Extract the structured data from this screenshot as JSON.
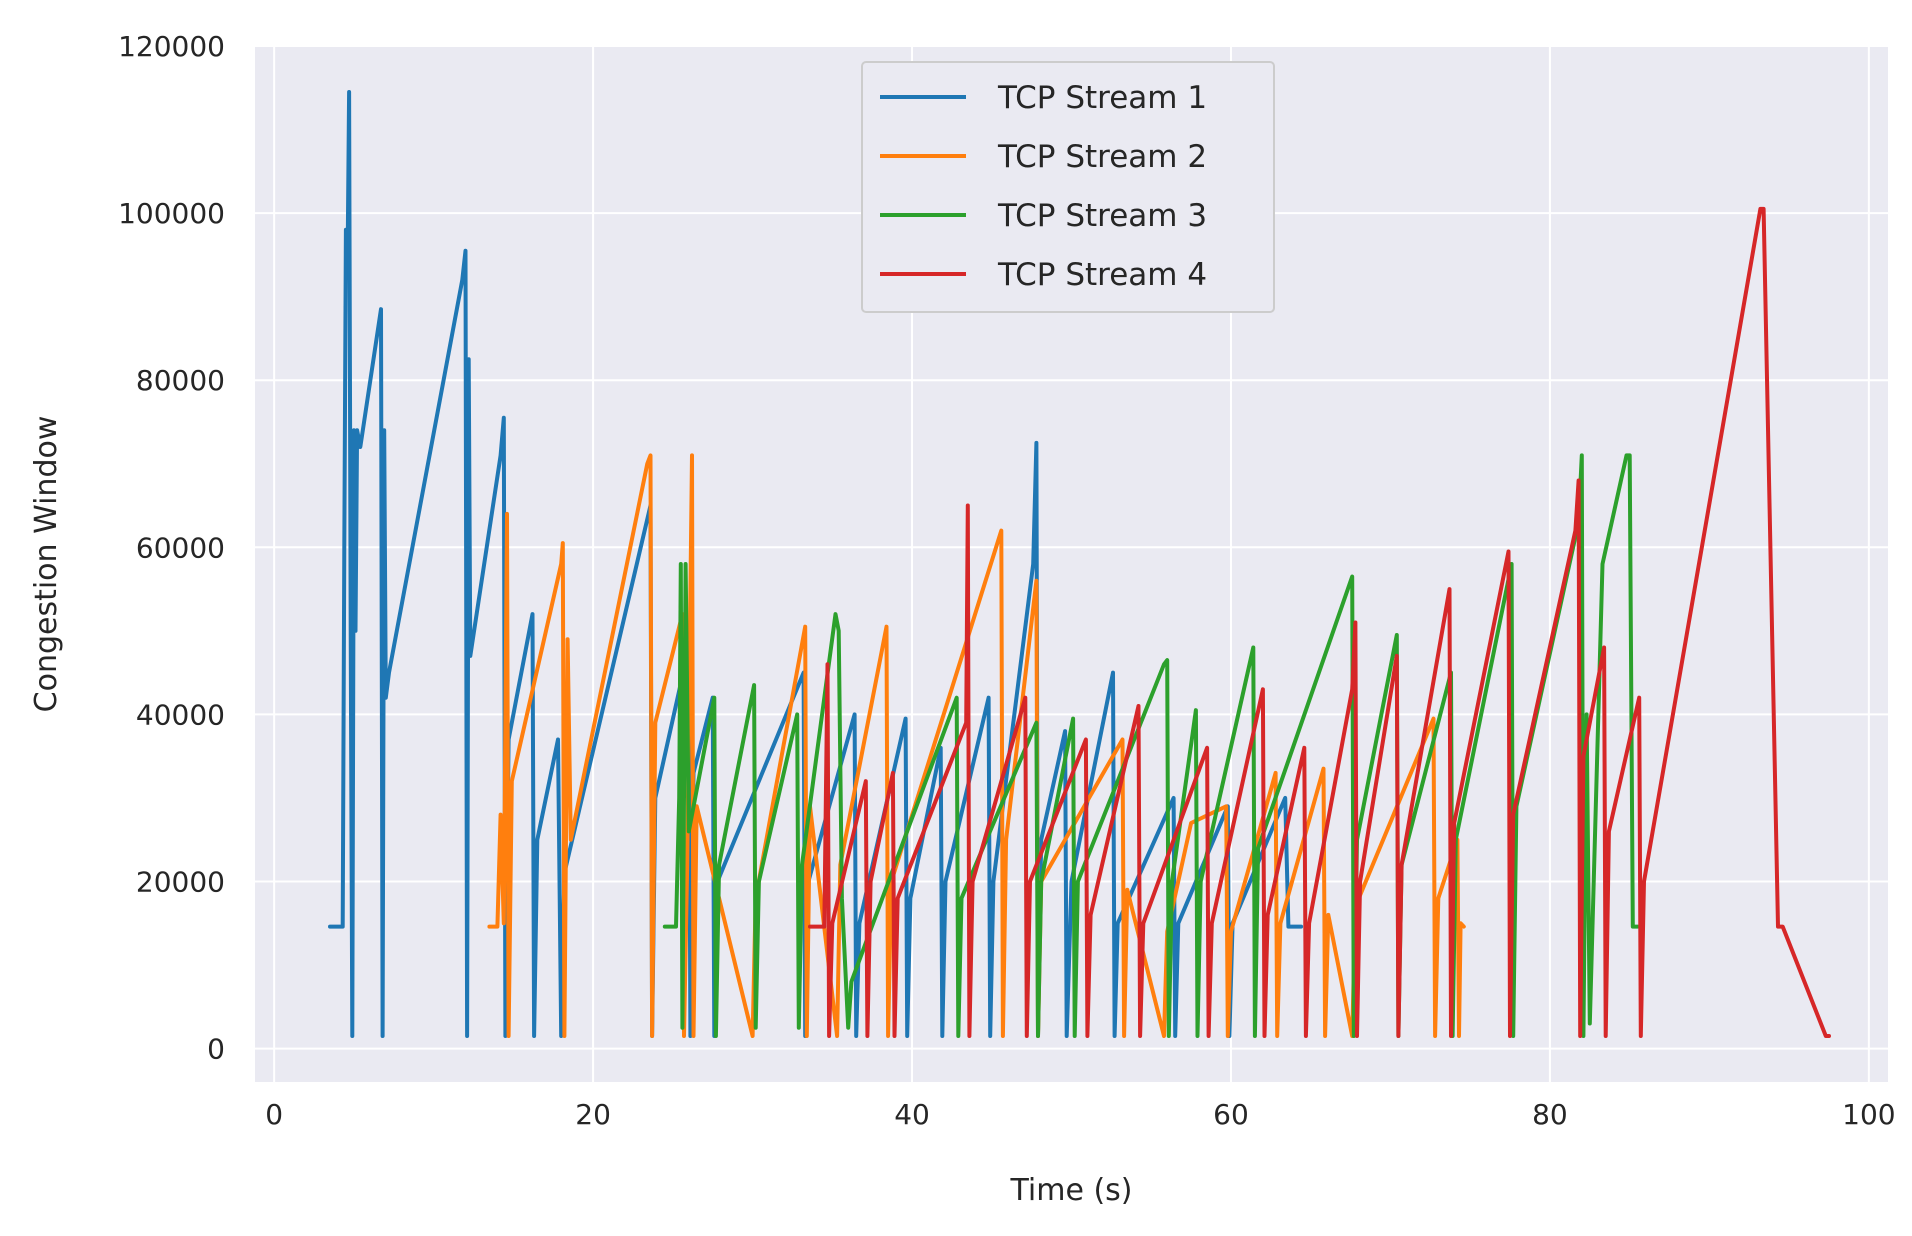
{
  "chart_data": {
    "type": "line",
    "title": "",
    "xlabel": "Time (s)",
    "ylabel": "Congestion Window",
    "xlim": [
      -1.2,
      101.2
    ],
    "ylim": [
      -4000,
      120000
    ],
    "xticks": [
      0,
      20,
      40,
      60,
      80,
      100
    ],
    "yticks": [
      0,
      20000,
      40000,
      60000,
      80000,
      100000,
      120000
    ],
    "grid": true,
    "legend_position": "top-center",
    "background": "#eaeaf2",
    "series": [
      {
        "name": "TCP Stream 1",
        "color": "#1f77b4",
        "points": [
          [
            3.5,
            14600
          ],
          [
            4.0,
            14600
          ],
          [
            4.3,
            14600
          ],
          [
            4.4,
            60000
          ],
          [
            4.5,
            98000
          ],
          [
            4.6,
            93000
          ],
          [
            4.7,
            114500
          ],
          [
            4.8,
            50000
          ],
          [
            4.9,
            1500
          ],
          [
            5.0,
            74000
          ],
          [
            5.1,
            50000
          ],
          [
            5.2,
            74000
          ],
          [
            5.4,
            72000
          ],
          [
            6.7,
            88500
          ],
          [
            6.8,
            1500
          ],
          [
            6.9,
            74000
          ],
          [
            7.0,
            42000
          ],
          [
            7.2,
            45000
          ],
          [
            11.8,
            92000
          ],
          [
            12.0,
            95500
          ],
          [
            12.1,
            1500
          ],
          [
            12.2,
            82500
          ],
          [
            12.3,
            47000
          ],
          [
            14.2,
            71000
          ],
          [
            14.4,
            75500
          ],
          [
            14.5,
            1500
          ],
          [
            14.7,
            37000
          ],
          [
            16.2,
            52000
          ],
          [
            16.3,
            1500
          ],
          [
            16.5,
            25000
          ],
          [
            17.8,
            37000
          ],
          [
            18.0,
            1500
          ],
          [
            18.2,
            21000
          ],
          [
            23.6,
            65000
          ],
          [
            23.7,
            1500
          ],
          [
            23.9,
            30000
          ],
          [
            26.0,
            48000
          ],
          [
            26.1,
            1500
          ],
          [
            26.3,
            33000
          ],
          [
            27.5,
            42000
          ],
          [
            27.6,
            1500
          ],
          [
            27.8,
            20000
          ],
          [
            33.2,
            45000
          ],
          [
            33.3,
            1500
          ],
          [
            33.5,
            20000
          ],
          [
            36.4,
            40000
          ],
          [
            36.5,
            1500
          ],
          [
            36.7,
            15000
          ],
          [
            39.6,
            39500
          ],
          [
            39.7,
            1500
          ],
          [
            39.9,
            18000
          ],
          [
            41.8,
            36000
          ],
          [
            41.9,
            1500
          ],
          [
            42.1,
            20000
          ],
          [
            44.8,
            42000
          ],
          [
            44.9,
            1500
          ],
          [
            45.1,
            20000
          ],
          [
            47.6,
            58000
          ],
          [
            47.8,
            72500
          ],
          [
            47.9,
            1500
          ],
          [
            48.1,
            25000
          ],
          [
            49.6,
            38000
          ],
          [
            49.7,
            1500
          ],
          [
            50.0,
            20000
          ],
          [
            52.6,
            45000
          ],
          [
            52.7,
            1500
          ],
          [
            52.9,
            15000
          ],
          [
            56.4,
            30000
          ],
          [
            56.5,
            1500
          ],
          [
            56.7,
            15000
          ],
          [
            59.8,
            29000
          ],
          [
            59.9,
            1500
          ],
          [
            60.1,
            15000
          ],
          [
            63.4,
            30000
          ],
          [
            63.6,
            14600
          ],
          [
            64.2,
            14600
          ],
          [
            64.4,
            14600
          ]
        ]
      },
      {
        "name": "TCP Stream 2",
        "color": "#ff7f0e",
        "points": [
          [
            13.5,
            14600
          ],
          [
            14.0,
            14600
          ],
          [
            14.2,
            28000
          ],
          [
            14.4,
            15000
          ],
          [
            14.6,
            64000
          ],
          [
            14.7,
            1500
          ],
          [
            14.9,
            32000
          ],
          [
            18.0,
            58000
          ],
          [
            18.1,
            60500
          ],
          [
            18.2,
            1500
          ],
          [
            18.4,
            49000
          ],
          [
            18.6,
            25000
          ],
          [
            23.4,
            70000
          ],
          [
            23.6,
            71000
          ],
          [
            23.7,
            1500
          ],
          [
            23.9,
            39000
          ],
          [
            25.6,
            52000
          ],
          [
            25.7,
            1500
          ],
          [
            25.9,
            22000
          ],
          [
            26.2,
            71000
          ],
          [
            26.3,
            1500
          ],
          [
            26.5,
            29000
          ],
          [
            30.0,
            1500
          ],
          [
            30.2,
            18000
          ],
          [
            33.3,
            50500
          ],
          [
            33.4,
            1500
          ],
          [
            33.6,
            29000
          ],
          [
            35.3,
            1500
          ],
          [
            35.5,
            22000
          ],
          [
            38.4,
            50500
          ],
          [
            38.5,
            1500
          ],
          [
            38.7,
            20000
          ],
          [
            45.6,
            62000
          ],
          [
            45.7,
            1500
          ],
          [
            45.9,
            25000
          ],
          [
            47.8,
            56000
          ],
          [
            47.9,
            1500
          ],
          [
            48.1,
            20000
          ],
          [
            53.2,
            37000
          ],
          [
            53.3,
            1500
          ],
          [
            53.5,
            19000
          ],
          [
            55.8,
            1500
          ],
          [
            56.0,
            14000
          ],
          [
            57.5,
            27000
          ],
          [
            59.7,
            29000
          ],
          [
            59.8,
            1500
          ],
          [
            60.0,
            14000
          ],
          [
            62.8,
            33000
          ],
          [
            62.9,
            1500
          ],
          [
            63.1,
            15000
          ],
          [
            65.8,
            33500
          ],
          [
            65.9,
            1500
          ],
          [
            66.1,
            16000
          ],
          [
            67.6,
            1500
          ],
          [
            67.8,
            17000
          ],
          [
            72.7,
            39500
          ],
          [
            72.8,
            1500
          ],
          [
            73.0,
            18000
          ],
          [
            74.2,
            25000
          ],
          [
            74.3,
            1500
          ],
          [
            74.4,
            15000
          ],
          [
            74.6,
            14600
          ]
        ]
      },
      {
        "name": "TCP Stream 3",
        "color": "#2ca02c",
        "points": [
          [
            24.5,
            14600
          ],
          [
            25.0,
            14600
          ],
          [
            25.2,
            14600
          ],
          [
            25.4,
            30000
          ],
          [
            25.5,
            58000
          ],
          [
            25.6,
            2500
          ],
          [
            25.8,
            58000
          ],
          [
            26.0,
            26000
          ],
          [
            27.2,
            38000
          ],
          [
            27.6,
            42000
          ],
          [
            27.7,
            1500
          ],
          [
            27.9,
            22000
          ],
          [
            30.1,
            43500
          ],
          [
            30.2,
            2500
          ],
          [
            30.4,
            20000
          ],
          [
            32.8,
            40000
          ],
          [
            32.9,
            2500
          ],
          [
            33.1,
            22000
          ],
          [
            35.2,
            52000
          ],
          [
            35.4,
            50000
          ],
          [
            35.6,
            18000
          ],
          [
            36.0,
            2500
          ],
          [
            36.2,
            8000
          ],
          [
            42.8,
            42000
          ],
          [
            42.9,
            1500
          ],
          [
            43.1,
            18000
          ],
          [
            47.8,
            39000
          ],
          [
            47.9,
            1500
          ],
          [
            48.1,
            20000
          ],
          [
            50.1,
            39500
          ],
          [
            50.2,
            1500
          ],
          [
            50.4,
            20000
          ],
          [
            55.8,
            46000
          ],
          [
            56.0,
            46500
          ],
          [
            56.1,
            1500
          ],
          [
            56.3,
            20000
          ],
          [
            57.8,
            40500
          ],
          [
            57.9,
            1500
          ],
          [
            58.1,
            20000
          ],
          [
            61.4,
            48000
          ],
          [
            61.5,
            1500
          ],
          [
            61.7,
            24000
          ],
          [
            67.6,
            56500
          ],
          [
            67.7,
            1500
          ],
          [
            67.9,
            25000
          ],
          [
            70.4,
            49500
          ],
          [
            70.5,
            1500
          ],
          [
            70.7,
            22000
          ],
          [
            73.8,
            45000
          ],
          [
            73.9,
            1500
          ],
          [
            74.1,
            25000
          ],
          [
            77.6,
            58000
          ],
          [
            77.7,
            1500
          ],
          [
            77.9,
            29000
          ],
          [
            81.8,
            63000
          ],
          [
            82.0,
            71000
          ],
          [
            82.1,
            1500
          ],
          [
            82.3,
            40000
          ],
          [
            82.5,
            3000
          ],
          [
            83.3,
            58000
          ],
          [
            84.8,
            71000
          ],
          [
            85.0,
            71000
          ],
          [
            85.2,
            14600
          ],
          [
            85.5,
            14600
          ]
        ]
      },
      {
        "name": "TCP Stream 4",
        "color": "#d62728",
        "points": [
          [
            33.6,
            14600
          ],
          [
            34.5,
            14600
          ],
          [
            34.7,
            46000
          ],
          [
            34.8,
            1500
          ],
          [
            35.0,
            15000
          ],
          [
            37.1,
            32000
          ],
          [
            37.2,
            1500
          ],
          [
            37.4,
            20000
          ],
          [
            38.8,
            33000
          ],
          [
            38.9,
            1500
          ],
          [
            39.1,
            18000
          ],
          [
            43.4,
            39000
          ],
          [
            43.5,
            65000
          ],
          [
            43.6,
            1500
          ],
          [
            43.8,
            20000
          ],
          [
            47.1,
            42000
          ],
          [
            47.2,
            1500
          ],
          [
            47.4,
            20000
          ],
          [
            50.9,
            37000
          ],
          [
            51.0,
            1500
          ],
          [
            51.2,
            16000
          ],
          [
            54.2,
            41000
          ],
          [
            54.3,
            1500
          ],
          [
            54.5,
            15000
          ],
          [
            58.5,
            36000
          ],
          [
            58.6,
            1500
          ],
          [
            58.8,
            15000
          ],
          [
            62.0,
            43000
          ],
          [
            62.1,
            1500
          ],
          [
            62.3,
            16000
          ],
          [
            64.6,
            36000
          ],
          [
            64.7,
            1500
          ],
          [
            64.9,
            15000
          ],
          [
            67.6,
            43000
          ],
          [
            67.8,
            51000
          ],
          [
            67.9,
            1500
          ],
          [
            68.1,
            20000
          ],
          [
            70.4,
            47000
          ],
          [
            70.5,
            1500
          ],
          [
            70.7,
            22000
          ],
          [
            73.7,
            55000
          ],
          [
            73.8,
            1500
          ],
          [
            74.0,
            27000
          ],
          [
            77.4,
            59500
          ],
          [
            77.5,
            1500
          ],
          [
            77.7,
            28000
          ],
          [
            81.6,
            62000
          ],
          [
            81.8,
            68000
          ],
          [
            81.9,
            1500
          ],
          [
            82.1,
            35000
          ],
          [
            83.4,
            48000
          ],
          [
            83.5,
            1500
          ],
          [
            83.7,
            26000
          ],
          [
            85.6,
            42000
          ],
          [
            85.7,
            1500
          ],
          [
            85.9,
            20000
          ],
          [
            93.2,
            100500
          ],
          [
            93.4,
            100500
          ],
          [
            94.3,
            14600
          ],
          [
            94.6,
            14600
          ],
          [
            97.3,
            1500
          ],
          [
            97.5,
            1500
          ]
        ]
      }
    ]
  }
}
